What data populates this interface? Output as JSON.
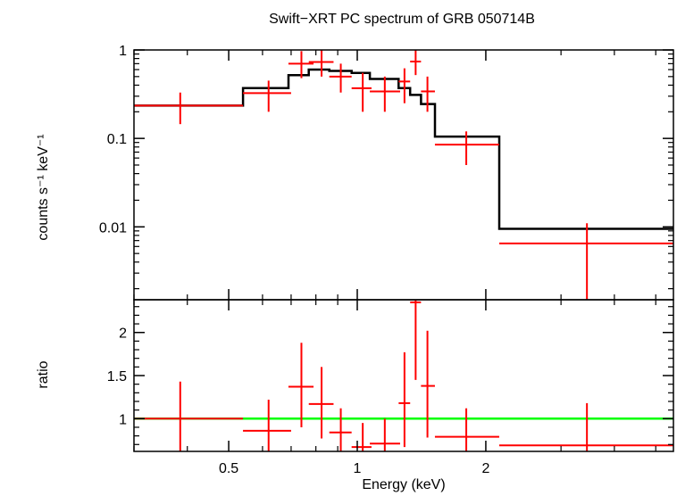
{
  "chart_data": [
    {
      "type": "scatter",
      "title": "Swift−XRT PC spectrum of GRB 050714B",
      "xlabel": "Energy (keV)",
      "ylabel": "counts s⁻¹ keV⁻¹",
      "xscale": "log",
      "yscale": "log",
      "xlim": [
        0.3,
        5.5
      ],
      "ylim": [
        0.0015,
        1.0
      ],
      "grid": false,
      "yticks": [
        {
          "value": 1,
          "label": "1"
        },
        {
          "value": 0.1,
          "label": "0.1"
        },
        {
          "value": 0.01,
          "label": "0.01"
        }
      ],
      "series": [
        {
          "role": "data",
          "color": "#ff0000",
          "points": [
            {
              "x": 0.385,
              "xlo": 0.3,
              "xhi": 0.54,
              "y": 0.235,
              "ylo": 0.145,
              "yhi": 0.33
            },
            {
              "x": 0.62,
              "xlo": 0.54,
              "xhi": 0.7,
              "y": 0.325,
              "ylo": 0.2,
              "yhi": 0.45
            },
            {
              "x": 0.74,
              "xlo": 0.69,
              "xhi": 0.79,
              "y": 0.7,
              "ylo": 0.48,
              "yhi": 0.97
            },
            {
              "x": 0.825,
              "xlo": 0.77,
              "xhi": 0.88,
              "y": 0.73,
              "ylo": 0.5,
              "yhi": 1.0
            },
            {
              "x": 0.915,
              "xlo": 0.86,
              "xhi": 0.97,
              "y": 0.5,
              "ylo": 0.33,
              "yhi": 0.7
            },
            {
              "x": 1.03,
              "xlo": 0.97,
              "xhi": 1.08,
              "y": 0.37,
              "ylo": 0.2,
              "yhi": 0.55
            },
            {
              "x": 1.16,
              "xlo": 1.07,
              "xhi": 1.26,
              "y": 0.34,
              "ylo": 0.2,
              "yhi": 0.5
            },
            {
              "x": 1.29,
              "xlo": 1.25,
              "xhi": 1.33,
              "y": 0.44,
              "ylo": 0.25,
              "yhi": 0.62
            },
            {
              "x": 1.37,
              "xlo": 1.33,
              "xhi": 1.41,
              "y": 0.74,
              "ylo": 0.52,
              "yhi": 1.0
            },
            {
              "x": 1.46,
              "xlo": 1.41,
              "xhi": 1.52,
              "y": 0.34,
              "ylo": 0.2,
              "yhi": 0.5
            },
            {
              "x": 1.8,
              "xlo": 1.52,
              "xhi": 2.15,
              "y": 0.085,
              "ylo": 0.05,
              "yhi": 0.12
            },
            {
              "x": 3.45,
              "xlo": 2.15,
              "xhi": 5.5,
              "y": 0.0065,
              "ylo": 0.0015,
              "yhi": 0.011
            }
          ]
        },
        {
          "role": "model",
          "color": "#000000",
          "steps": [
            {
              "xlo": 0.3,
              "xhi": 0.54,
              "y": 0.235
            },
            {
              "xlo": 0.54,
              "xhi": 0.69,
              "y": 0.37
            },
            {
              "xlo": 0.69,
              "xhi": 0.77,
              "y": 0.52
            },
            {
              "xlo": 0.77,
              "xhi": 0.86,
              "y": 0.6
            },
            {
              "xlo": 0.86,
              "xhi": 0.97,
              "y": 0.58
            },
            {
              "xlo": 0.97,
              "xhi": 1.07,
              "y": 0.55
            },
            {
              "xlo": 1.07,
              "xhi": 1.25,
              "y": 0.47
            },
            {
              "xlo": 1.25,
              "xhi": 1.33,
              "y": 0.37
            },
            {
              "xlo": 1.33,
              "xhi": 1.41,
              "y": 0.31
            },
            {
              "xlo": 1.41,
              "xhi": 1.52,
              "y": 0.245
            },
            {
              "xlo": 1.52,
              "xhi": 2.15,
              "y": 0.105
            },
            {
              "xlo": 2.15,
              "xhi": 5.5,
              "y": 0.0095
            }
          ]
        }
      ]
    },
    {
      "type": "scatter",
      "xlabel": "Energy (keV)",
      "ylabel": "ratio",
      "xscale": "log",
      "yscale": "linear",
      "xlim": [
        0.3,
        5.5
      ],
      "ylim": [
        0.62,
        2.38
      ],
      "grid": false,
      "xticks": [
        {
          "value": 0.5,
          "label": "0.5"
        },
        {
          "value": 1,
          "label": "1"
        },
        {
          "value": 2,
          "label": "2"
        }
      ],
      "yticks": [
        {
          "value": 1,
          "label": "1"
        },
        {
          "value": 1.5,
          "label": "1.5"
        },
        {
          "value": 2,
          "label": "2"
        }
      ],
      "reference_line": {
        "y": 1.0,
        "color": "#00ff00"
      },
      "series": [
        {
          "role": "ratio",
          "color": "#ff0000",
          "points": [
            {
              "x": 0.385,
              "xlo": 0.3,
              "xhi": 0.54,
              "y": 1.0,
              "ylo": 0.6,
              "yhi": 1.43
            },
            {
              "x": 0.62,
              "xlo": 0.54,
              "xhi": 0.7,
              "y": 0.86,
              "ylo": 0.52,
              "yhi": 1.22
            },
            {
              "x": 0.74,
              "xlo": 0.69,
              "xhi": 0.79,
              "y": 1.37,
              "ylo": 0.9,
              "yhi": 1.88
            },
            {
              "x": 0.825,
              "xlo": 0.77,
              "xhi": 0.88,
              "y": 1.17,
              "ylo": 0.77,
              "yhi": 1.6
            },
            {
              "x": 0.915,
              "xlo": 0.86,
              "xhi": 0.97,
              "y": 0.84,
              "ylo": 0.55,
              "yhi": 1.12
            },
            {
              "x": 1.03,
              "xlo": 0.97,
              "xhi": 1.08,
              "y": 0.67,
              "ylo": 0.36,
              "yhi": 0.95
            },
            {
              "x": 1.16,
              "xlo": 1.07,
              "xhi": 1.26,
              "y": 0.71,
              "ylo": 0.42,
              "yhi": 1.0
            },
            {
              "x": 1.29,
              "xlo": 1.25,
              "xhi": 1.33,
              "y": 1.18,
              "ylo": 0.67,
              "yhi": 1.77
            },
            {
              "x": 1.37,
              "xlo": 1.33,
              "xhi": 1.41,
              "y": 2.35,
              "ylo": 1.45,
              "yhi": 2.4
            },
            {
              "x": 1.46,
              "xlo": 1.41,
              "xhi": 1.52,
              "y": 1.38,
              "ylo": 0.78,
              "yhi": 2.02
            },
            {
              "x": 1.8,
              "xlo": 1.52,
              "xhi": 2.15,
              "y": 0.79,
              "ylo": 0.46,
              "yhi": 1.12
            },
            {
              "x": 3.45,
              "xlo": 2.15,
              "xhi": 5.5,
              "y": 0.69,
              "ylo": 0.18,
              "yhi": 1.18
            }
          ]
        }
      ]
    }
  ]
}
